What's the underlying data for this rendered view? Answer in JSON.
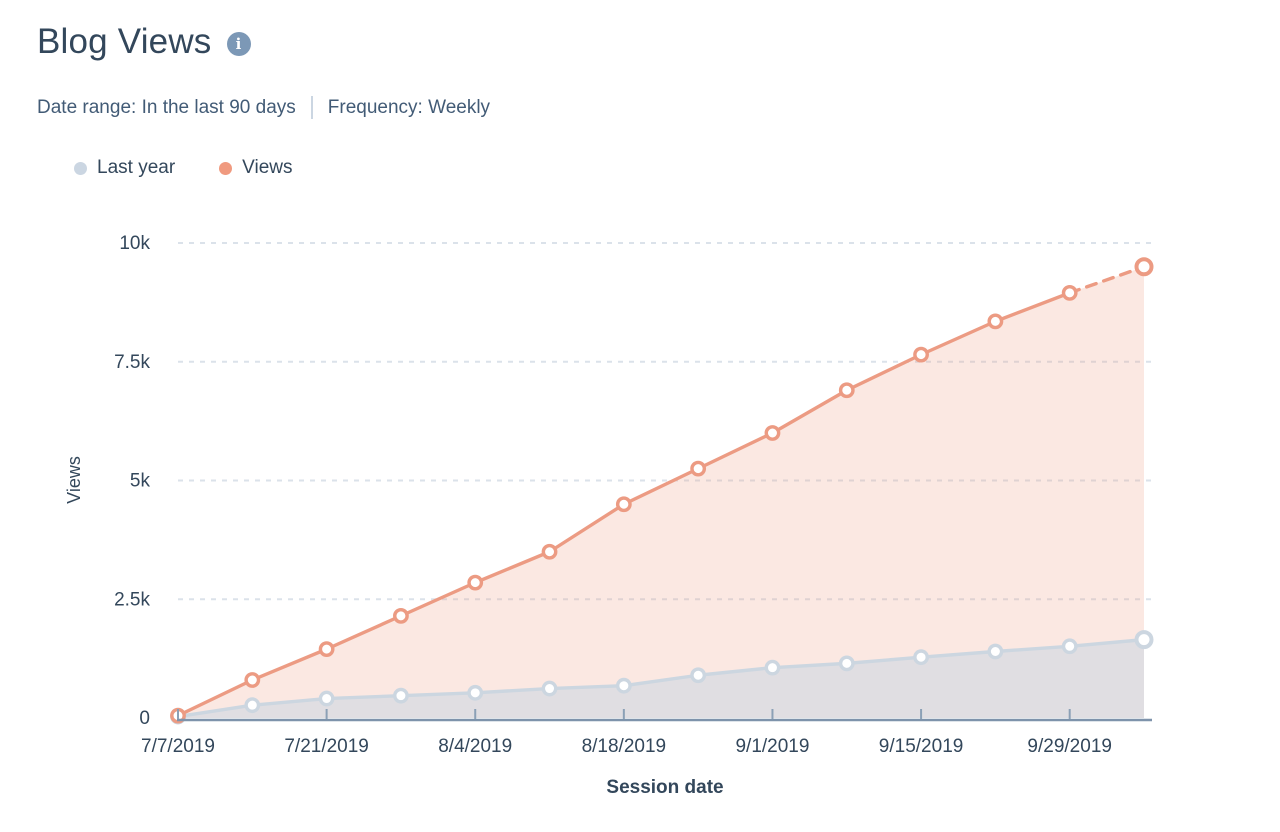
{
  "header": {
    "title": "Blog Views",
    "date_range": "Date range: In the last 90 days",
    "frequency": "Frequency: Weekly"
  },
  "legend": [
    {
      "label": "Last year",
      "color": "#cbd6e2"
    },
    {
      "label": "Views",
      "color": "#f09a7f"
    }
  ],
  "chart_data": {
    "type": "area",
    "title": "Blog Views",
    "xlabel": "Session date",
    "ylabel": "Views",
    "x": [
      "7/7/2019",
      "7/14/2019",
      "7/21/2019",
      "7/28/2019",
      "8/4/2019",
      "8/11/2019",
      "8/18/2019",
      "8/25/2019",
      "9/1/2019",
      "9/8/2019",
      "9/15/2019",
      "9/22/2019",
      "9/29/2019",
      "10/6/2019"
    ],
    "x_tick_indices": [
      0,
      2,
      4,
      6,
      8,
      10,
      12
    ],
    "x_tick_labels": [
      "7/7/2019",
      "7/21/2019",
      "8/4/2019",
      "8/18/2019",
      "9/1/2019",
      "9/15/2019",
      "9/29/2019"
    ],
    "y_ticks": [
      0,
      2500,
      5000,
      7500,
      10000
    ],
    "y_tick_labels": [
      "0",
      "2.5k",
      "5k",
      "7.5k",
      "10k"
    ],
    "ylim": [
      0,
      10000
    ],
    "grid": "dashed-horizontal",
    "legend_position": "top-left",
    "series": [
      {
        "name": "Last year",
        "color": "#ccd6e0",
        "fill": "rgba(203,214,226,0.55)",
        "dashed_last_segment": false,
        "values": [
          30,
          270,
          410,
          470,
          530,
          620,
          680,
          900,
          1060,
          1150,
          1280,
          1400,
          1510,
          1650
        ]
      },
      {
        "name": "Views",
        "color": "#ec9b83",
        "fill": "rgba(238,158,133,0.24)",
        "dashed_last_segment": true,
        "values": [
          50,
          800,
          1450,
          2150,
          2850,
          3500,
          4500,
          5250,
          6000,
          6900,
          7650,
          8350,
          8950,
          9500
        ]
      }
    ]
  }
}
